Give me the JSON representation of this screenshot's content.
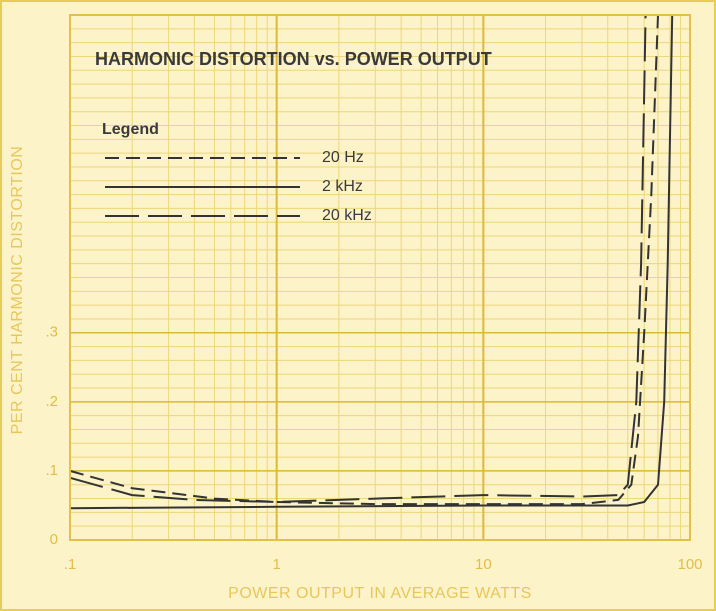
{
  "chart_data": {
    "type": "line",
    "title": "HARMONIC DISTORTION vs. POWER OUTPUT",
    "legend_title": "Legend",
    "xlabel": "POWER OUTPUT IN AVERAGE WATTS",
    "ylabel": "PER CENT HARMONIC DISTORTION",
    "xscale": "log",
    "grid": true,
    "legend": "upper left",
    "xlim": [
      0.1,
      100
    ],
    "ylim": [
      0,
      0.76
    ],
    "xticks": [
      {
        "value": 0.1,
        "label": ".1"
      },
      1,
      10,
      100
    ],
    "yticks": [
      0,
      {
        "value": 0.1,
        "label": ".1"
      },
      {
        "value": 0.2,
        "label": ".2"
      },
      {
        "value": 0.3,
        "label": ".3"
      }
    ],
    "series": [
      {
        "name": "20 Hz",
        "color": "#333333",
        "style": "dashed",
        "x": [
          0.1,
          0.2,
          0.5,
          1,
          3,
          10,
          30,
          45,
          52,
          56,
          60,
          65,
          70
        ],
        "values": [
          0.1,
          0.075,
          0.06,
          0.055,
          0.052,
          0.052,
          0.052,
          0.058,
          0.08,
          0.15,
          0.3,
          0.5,
          0.76
        ]
      },
      {
        "name": "2 kHz",
        "color": "#333333",
        "style": "solid",
        "x": [
          0.1,
          1,
          10,
          50,
          60,
          70,
          75,
          78,
          82
        ],
        "values": [
          0.046,
          0.048,
          0.05,
          0.05,
          0.055,
          0.08,
          0.2,
          0.4,
          0.76
        ]
      },
      {
        "name": "20 kHz",
        "color": "#333333",
        "style": "longdash",
        "x": [
          0.1,
          0.2,
          0.4,
          1,
          3,
          10,
          30,
          45,
          50,
          55,
          58,
          61
        ],
        "values": [
          0.09,
          0.065,
          0.058,
          0.055,
          0.06,
          0.065,
          0.063,
          0.065,
          0.08,
          0.2,
          0.4,
          0.76
        ]
      }
    ]
  }
}
